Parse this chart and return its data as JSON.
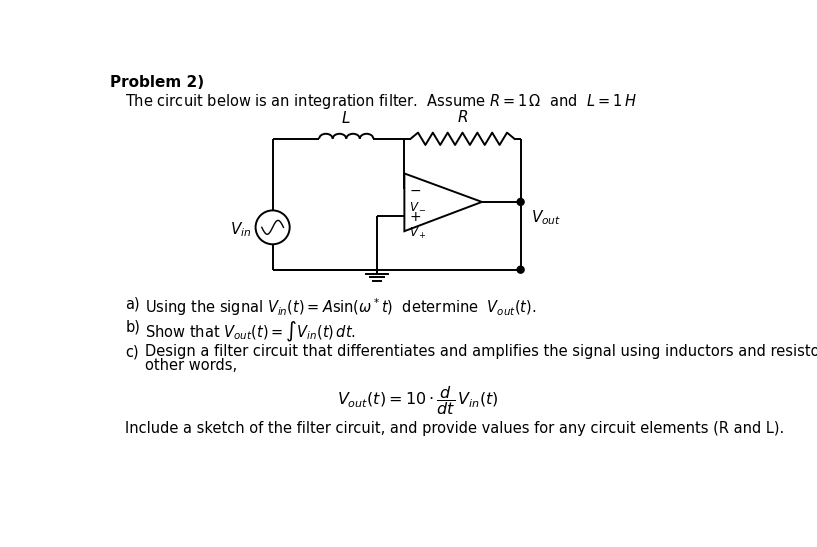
{
  "title": "Problem 2)",
  "intro_text": "The circuit below is an integration filter.  Assume $R = 1\\,\\Omega$  and  $L = 1\\,H$",
  "part_a": "a)  Using the signal $V_{in}(t) = A\\sin(\\omega^*t)$  determine  $V_{out}(t)$.",
  "part_b": "b)  Show that $V_{out}(t) = \\int V_{in}(t)\\,dt$.",
  "part_c1": "c)  Design a filter circuit that differentiates and amplifies the signal using inductors and resistors.  In",
  "part_c2": "other words,",
  "part_c_eq": "$V_{out}(t) = 10 \\cdot \\dfrac{d}{dt}\\,V_{in}(t)$",
  "part_c3": "Include a sketch of the filter circuit, and provide values for any circuit elements (R and L).",
  "bg_color": "#ffffff",
  "text_color": "#000000",
  "font_size_title": 11,
  "font_size_body": 10.5
}
